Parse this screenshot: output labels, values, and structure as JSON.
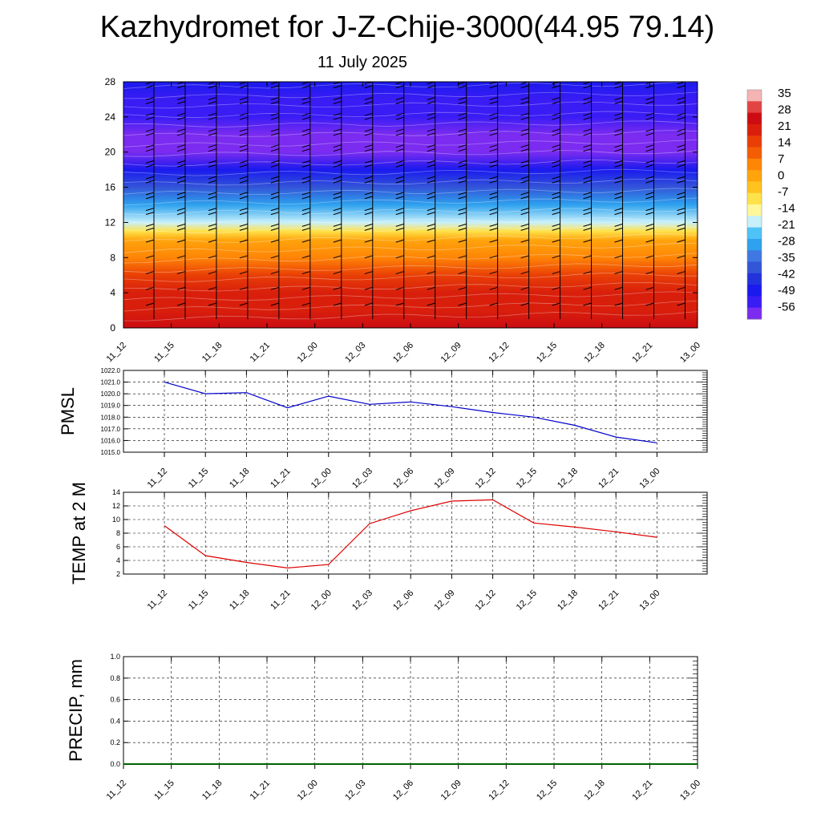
{
  "title": "Kazhydromet for J-Z-Chije-3000(44.95 79.14)",
  "subtitle": "11 July 2025",
  "colors": {
    "pmsl_line": "#0000cc",
    "temp_line": "#dd0000",
    "precip_line": "#006400",
    "grid": "#000000",
    "barb": "#000000"
  },
  "chart_data": [
    {
      "type": "heatmap",
      "description_key": "temperature-height cross section with wind barbs",
      "x_tick_labels": [
        "11_12",
        "11_15",
        "11_18",
        "11_21",
        "12_00",
        "12_03",
        "12_06",
        "12_09",
        "12_12",
        "12_15",
        "12_18",
        "12_21",
        "13_00"
      ],
      "y_ticks": [
        0,
        4,
        8,
        12,
        16,
        20,
        24,
        28
      ],
      "ylim": [
        0,
        28
      ],
      "colorbar_labels": [
        "35",
        "28",
        "21",
        "14",
        "7",
        "0",
        "-7",
        "-14",
        "-21",
        "-28",
        "-35",
        "-42",
        "-49",
        "-56"
      ],
      "colormap": [
        "#7b2cf0",
        "#3a1cf5",
        "#1a1aee",
        "#2233dd",
        "#3355d8",
        "#3f78e3",
        "#2ea2ee",
        "#4fc3f7",
        "#c8f0fb",
        "#fff79a",
        "#ffe24a",
        "#ffc21e",
        "#ffa40c",
        "#ff8506",
        "#f55d05",
        "#e93f06",
        "#d91f0c",
        "#cc0c12",
        "#e24444",
        "#f5b3b3"
      ],
      "temperature_levels": [
        {
          "height": 0,
          "temp": 27
        },
        {
          "height": 2,
          "temp": 24
        },
        {
          "height": 4,
          "temp": 20
        },
        {
          "height": 6,
          "temp": 15
        },
        {
          "height": 8,
          "temp": 9
        },
        {
          "height": 10,
          "temp": 2
        },
        {
          "height": 11,
          "temp": -9
        },
        {
          "height": 12,
          "temp": -19
        },
        {
          "height": 14,
          "temp": -30
        },
        {
          "height": 16,
          "temp": -40
        },
        {
          "height": 18,
          "temp": -48
        },
        {
          "height": 20,
          "temp": -56
        },
        {
          "height": 22,
          "temp": -58
        },
        {
          "height": 24,
          "temp": -55
        },
        {
          "height": 26,
          "temp": -52
        },
        {
          "height": 28,
          "temp": -50
        }
      ]
    },
    {
      "type": "line",
      "ylabel": "PMSL",
      "x_tick_labels": [
        "11_12",
        "11_15",
        "11_18",
        "11_21",
        "12_00",
        "12_03",
        "12_06",
        "12_09",
        "12_12",
        "12_15",
        "12_18",
        "12_21",
        "13_00"
      ],
      "y_tick_labels": [
        "1022.0",
        "1021.0",
        "1020.0",
        "1019.0",
        "1018.0",
        "1017.0",
        "1016.0",
        "1015.0"
      ],
      "ylim": [
        1015,
        1022
      ],
      "values": [
        1021.0,
        1020.0,
        1020.1,
        1018.8,
        1019.8,
        1019.1,
        1019.3,
        1018.9,
        1018.4,
        1018.0,
        1017.3,
        1016.3,
        1015.8
      ]
    },
    {
      "type": "line",
      "ylabel": "TEMP at 2 M",
      "x_tick_labels": [
        "11_12",
        "11_15",
        "11_18",
        "11_21",
        "12_00",
        "12_03",
        "12_06",
        "12_09",
        "12_12",
        "12_15",
        "12_18",
        "12_21",
        "13_00"
      ],
      "y_tick_labels": [
        "14",
        "12",
        "10",
        "8",
        "6",
        "4",
        "2"
      ],
      "ylim": [
        2,
        14
      ],
      "values": [
        9.1,
        4.7,
        3.7,
        2.9,
        3.4,
        9.4,
        11.3,
        12.7,
        12.9,
        9.5,
        8.9,
        8.2,
        7.4
      ]
    },
    {
      "type": "line",
      "ylabel": "PRECIP, mm",
      "x_tick_labels": [
        "11_12",
        "11_15",
        "11_18",
        "11_21",
        "12_00",
        "12_03",
        "12_06",
        "12_09",
        "12_12",
        "12_15",
        "12_18",
        "12_21",
        "13_00"
      ],
      "y_tick_labels": [
        "1.0",
        "0.8",
        "0.6",
        "0.4",
        "0.2",
        "0.0"
      ],
      "ylim": [
        0,
        1
      ],
      "values": [
        0,
        0,
        0,
        0,
        0,
        0,
        0,
        0,
        0,
        0,
        0,
        0,
        0
      ]
    }
  ]
}
